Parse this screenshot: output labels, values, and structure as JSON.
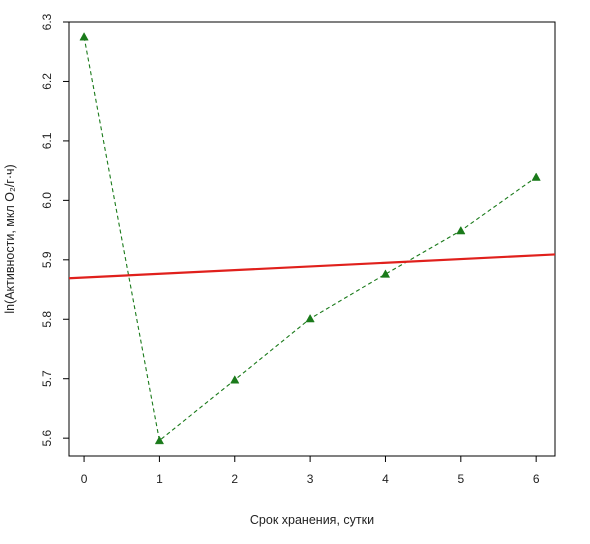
{
  "chart_data": {
    "type": "line",
    "xlabel": "Срок хранения, сутки",
    "ylabel": "ln(Активности, мкл O₂/г·ч)",
    "xlim": [
      -0.2,
      6.25
    ],
    "ylim": [
      5.57,
      6.3
    ],
    "x_ticks": [
      0,
      1,
      2,
      3,
      4,
      5,
      6
    ],
    "y_ticks": [
      5.6,
      5.7,
      5.8,
      5.9,
      6.0,
      6.1,
      6.2,
      6.3
    ],
    "x_tick_labels": [
      "0",
      "1",
      "2",
      "3",
      "4",
      "5",
      "6"
    ],
    "y_tick_labels": [
      "5.6",
      "5.7",
      "5.8",
      "5.9",
      "6.0",
      "6.1",
      "6.2",
      "6.3"
    ],
    "grid": false,
    "series": [
      {
        "kind": "points-dashed",
        "marker": "triangle",
        "color": "#1a7a1a",
        "x": [
          0,
          1,
          2,
          3,
          4,
          5,
          6
        ],
        "y": [
          6.275,
          5.596,
          5.698,
          5.801,
          5.876,
          5.949,
          6.039
        ]
      },
      {
        "kind": "regression-line",
        "color": "#e0201c",
        "x": [
          -0.2,
          6.25
        ],
        "y": [
          5.869,
          5.909
        ]
      }
    ]
  }
}
